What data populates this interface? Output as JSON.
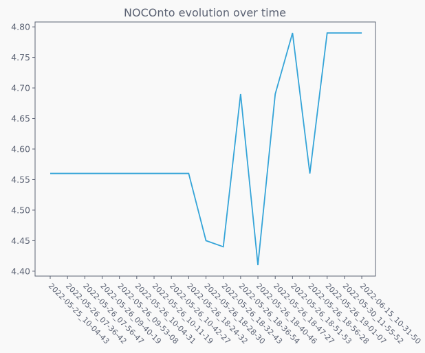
{
  "chart_data": {
    "type": "line",
    "title": "NOCOnto evolution over time",
    "xlabel": "",
    "ylabel": "",
    "categories": [
      "2022-05-25_10-04-43",
      "2022-05-26_07-36-42",
      "2022-05-26_07-56-47",
      "2022-05-26_09-40-19",
      "2022-05-26_09-53-08",
      "2022-05-26_10-04-31",
      "2022-05-26_10-11-19",
      "2022-05-26_10-42-27",
      "2022-05-26_18-24-32",
      "2022-05-26_18-28-30",
      "2022-05-26_18-32-43",
      "2022-05-26_18-36-54",
      "2022-05-26_18-40-46",
      "2022-05-26_18-47-27",
      "2022-05-26_18-51-53",
      "2022-05-26_18-56-28",
      "2022-05-26_19-01-07",
      "2022-05-30_11-55-52",
      "2022-06-15_10-31-50"
    ],
    "values": [
      4.56,
      4.56,
      4.56,
      4.56,
      4.56,
      4.56,
      4.56,
      4.56,
      4.56,
      4.45,
      4.44,
      4.69,
      4.41,
      4.69,
      4.79,
      4.56,
      4.79,
      4.79,
      4.79
    ],
    "yticks": [
      "4.40",
      "4.45",
      "4.50",
      "4.55",
      "4.60",
      "4.65",
      "4.70",
      "4.75",
      "4.80"
    ],
    "ylim": [
      4.392,
      4.808
    ],
    "grid": false,
    "colors": {
      "line": "#34a4d8",
      "axes": "#5b6273",
      "background": "#f9f9f9",
      "plot_bg": "#f9f9f9"
    }
  }
}
